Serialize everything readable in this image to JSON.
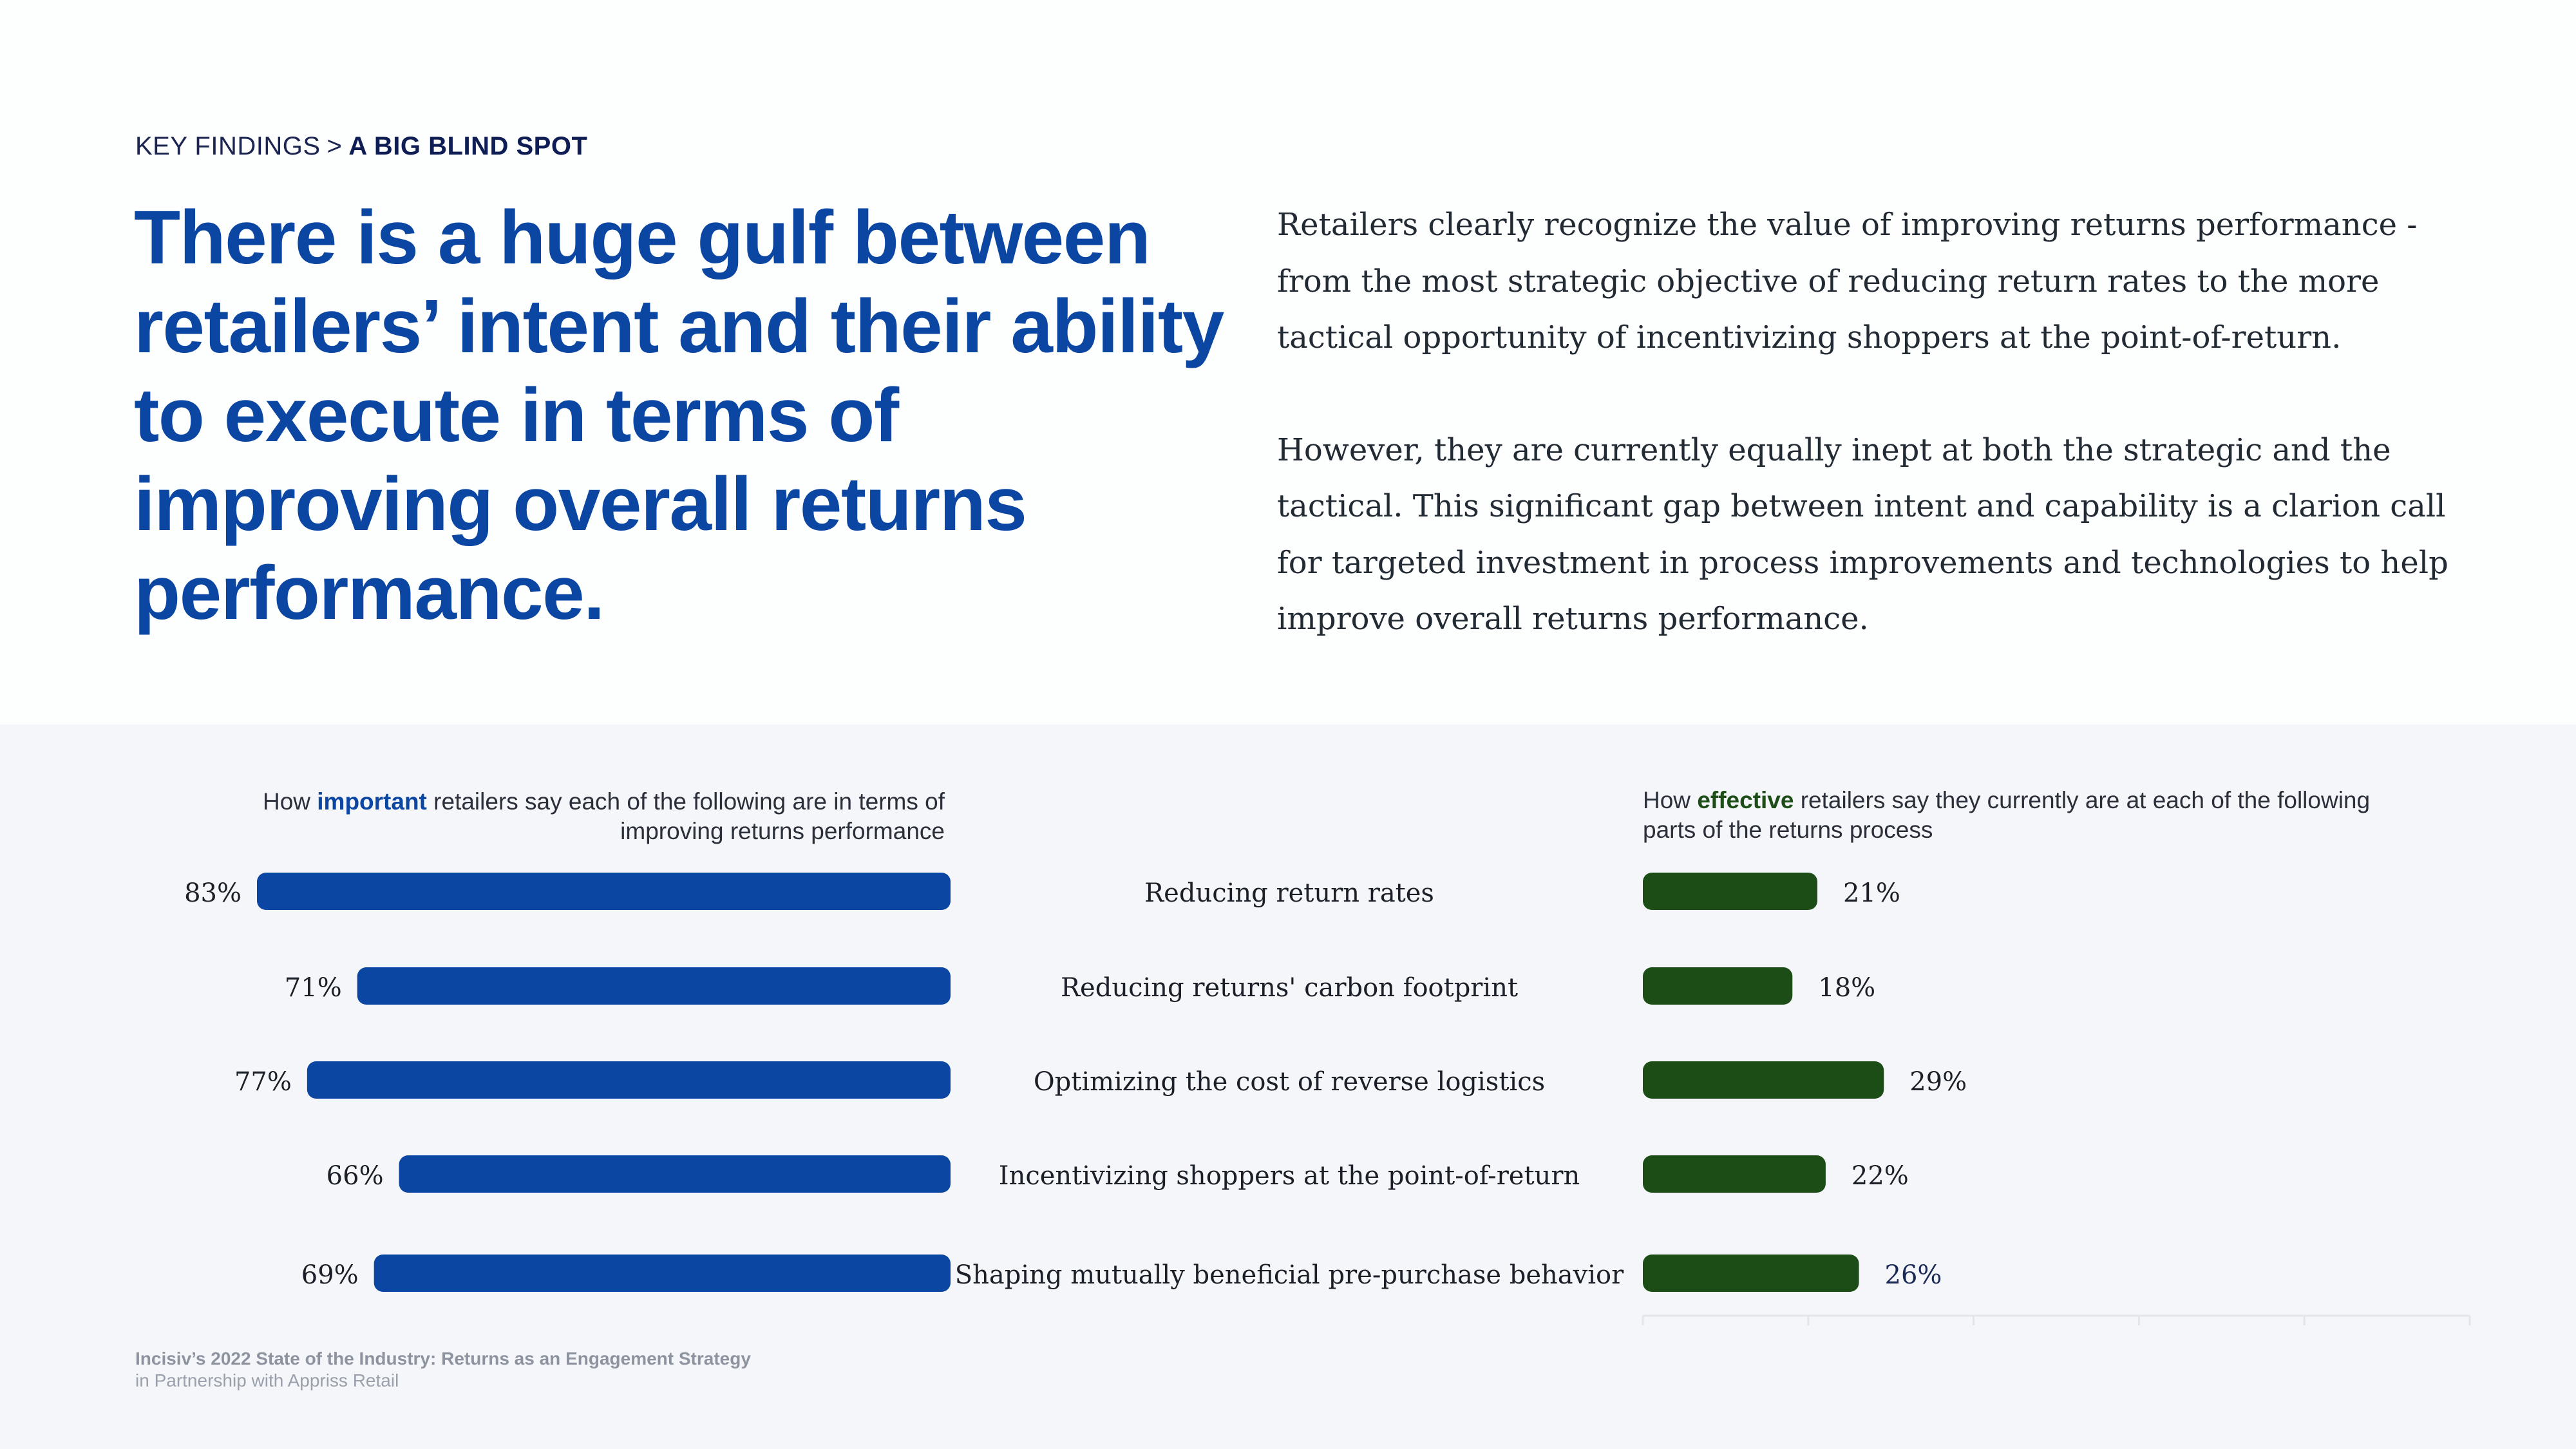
{
  "breadcrumb": {
    "section": "KEY FINDINGS",
    "separator": ">",
    "current": "A BIG BLIND SPOT"
  },
  "headline": "There is a huge gulf between retailers’ intent and their ability to execute in terms of improving overall returns performance.",
  "body": {
    "paragraph1": "Retailers clearly recognize the value of improving returns performance - from the most strategic objective of reducing return rates to the more tactical opportunity of incentivizing shoppers at the point-of-return.",
    "paragraph2": "However, they are currently equally inept at both the strategic and the tactical. This significant gap between intent and capability is a clarion call for targeted investment in process improvements and technologies to help improve overall returns performance."
  },
  "left_chart_title": {
    "prefix": "How ",
    "emphasis": "important",
    "suffix": " retailers say each of the following are in terms of improving returns performance"
  },
  "right_chart_title": {
    "prefix": "How ",
    "emphasis": "effective",
    "suffix": " retailers say they currently are at each of the following parts of the returns process"
  },
  "colors": {
    "importance_bar": "#0b46a3",
    "effectiveness_bar": "#1d4d16",
    "headline": "#0b46a3"
  },
  "chart_data": {
    "type": "bar",
    "orientation": "horizontal",
    "layout": "back-to-back",
    "categories": [
      "Reducing return rates",
      "Reducing returns' carbon footprint",
      "Optimizing the cost of reverse logistics",
      "Incentivizing shoppers at the point-of-return",
      "Shaping mutually beneficial pre-purchase behavior"
    ],
    "series": [
      {
        "values": [
          83,
          71,
          77,
          66,
          69
        ],
        "labels": [
          "83%",
          "71%",
          "77%",
          "66%",
          "69%"
        ],
        "color": "#0b46a3",
        "direction": "left"
      },
      {
        "values": [
          21,
          18,
          29,
          22,
          26
        ],
        "labels": [
          "21%",
          "18%",
          "29%",
          "22%",
          "26%"
        ],
        "color": "#1d4d16",
        "direction": "right"
      }
    ],
    "xlim": [
      0,
      100
    ],
    "grid": false
  },
  "footer": {
    "line1": "Incisiv’s 2022 State of the Industry: Returns as an Engagement Strategy",
    "line2": "in Partnership with Appriss Retail"
  }
}
